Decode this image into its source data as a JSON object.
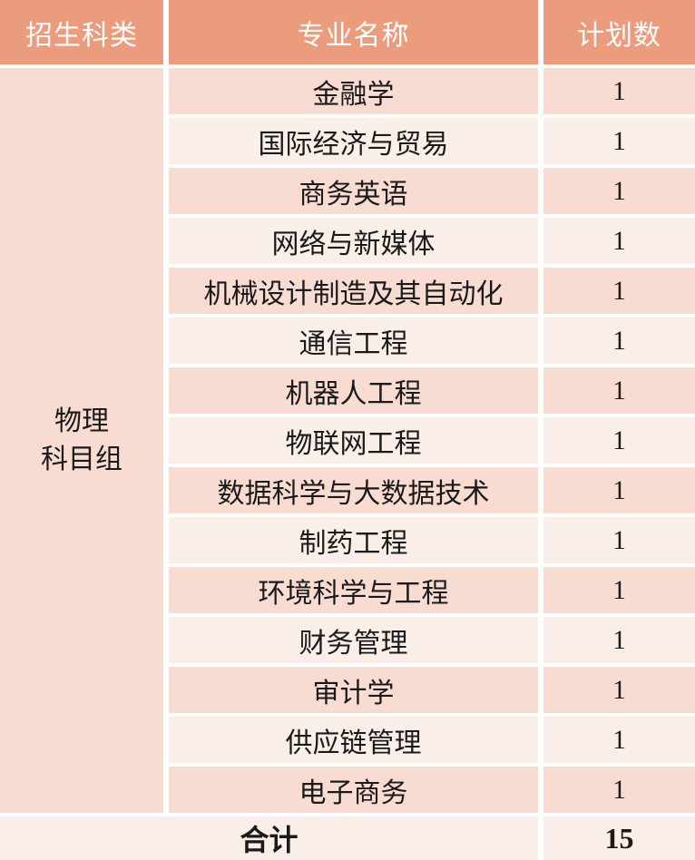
{
  "table": {
    "headers": {
      "category": "招生科类",
      "major": "专业名称",
      "plan": "计划数"
    },
    "subject_group": "物理\n科目组",
    "rows": [
      {
        "major": "金融学",
        "plan": "1"
      },
      {
        "major": "国际经济与贸易",
        "plan": "1"
      },
      {
        "major": "商务英语",
        "plan": "1"
      },
      {
        "major": "网络与新媒体",
        "plan": "1"
      },
      {
        "major": "机械设计制造及其自动化",
        "plan": "1"
      },
      {
        "major": "通信工程",
        "plan": "1"
      },
      {
        "major": "机器人工程",
        "plan": "1"
      },
      {
        "major": "物联网工程",
        "plan": "1"
      },
      {
        "major": "数据科学与大数据技术",
        "plan": "1"
      },
      {
        "major": "制药工程",
        "plan": "1"
      },
      {
        "major": "环境科学与工程",
        "plan": "1"
      },
      {
        "major": "财务管理",
        "plan": "1"
      },
      {
        "major": "审计学",
        "plan": "1"
      },
      {
        "major": "供应链管理",
        "plan": "1"
      },
      {
        "major": "电子商务",
        "plan": "1"
      }
    ],
    "footer": {
      "label": "合计",
      "total": "15"
    }
  },
  "colors": {
    "header_bg": "#EA9C7C",
    "row_dark": "#F8DCD2",
    "row_light": "#FAEEE8",
    "gap_bg": "#FFFFFF",
    "header_text": "#FFFFFF",
    "body_text": "#1A1A1A"
  }
}
